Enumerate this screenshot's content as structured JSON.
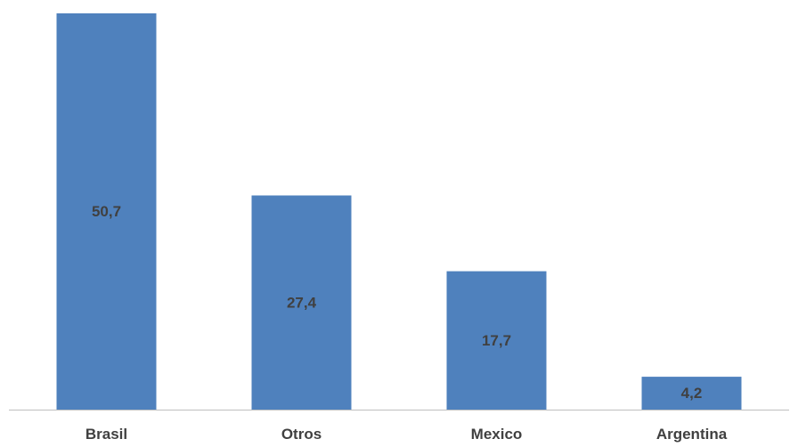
{
  "chart_data": {
    "type": "bar",
    "categories": [
      "Brasil",
      "Otros",
      "Mexico",
      "Argentina"
    ],
    "values": [
      50.7,
      27.4,
      17.7,
      4.2
    ],
    "data_labels": [
      "50,7",
      "27,4",
      "17,7",
      "4,2"
    ],
    "title": "",
    "xlabel": "",
    "ylabel": "",
    "ylim": [
      0,
      50.7
    ],
    "grid": false,
    "legend": "none",
    "colors": {
      "bar": "#4f81bd",
      "label_text": "#404040",
      "axis": "#bfbfbf"
    }
  }
}
